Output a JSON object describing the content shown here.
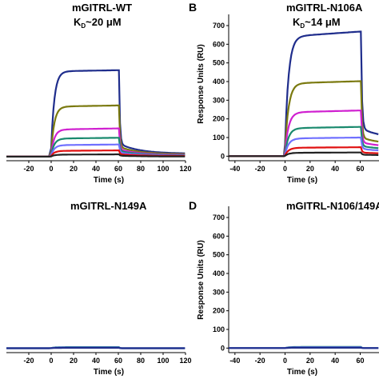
{
  "figure": {
    "panels": [
      {
        "letter": "",
        "title": "mGITRL-WT",
        "kd_label": "K",
        "kd_sub": "D",
        "kd_value": "~20 μM"
      },
      {
        "letter": "B",
        "title": "mGITRL-N106A",
        "kd_label": "K",
        "kd_sub": "D",
        "kd_value": "~14 μM"
      },
      {
        "letter": "",
        "title": "mGITRL-N149A",
        "kd_label": "",
        "kd_sub": "",
        "kd_value": ""
      },
      {
        "letter": "D",
        "title": "mGITRL-N106/149A",
        "kd_label": "",
        "kd_sub": "",
        "kd_value": ""
      }
    ]
  },
  "chart_data": [
    {
      "type": "line",
      "title": "mGITRL-WT",
      "xlabel": "Time (s)",
      "ylabel": "",
      "xlim": [
        -40,
        120
      ],
      "ylim": [
        -20,
        760
      ],
      "xticks": [
        -20,
        0,
        20,
        40,
        60,
        80,
        100,
        120
      ],
      "yticks": [],
      "series": [
        {
          "color": "#1f2d8c",
          "values": [
            0,
            0,
            520,
            527,
            80,
            40,
            18
          ]
        },
        {
          "color": "#7b7a10",
          "values": [
            0,
            0,
            305,
            312,
            60,
            30,
            14
          ]
        },
        {
          "color": "#d020d0",
          "values": [
            0,
            0,
            165,
            172,
            45,
            22,
            10
          ]
        },
        {
          "color": "#1a8a6e",
          "values": [
            0,
            0,
            110,
            115,
            35,
            18,
            8
          ]
        },
        {
          "color": "#7070ff",
          "values": [
            0,
            0,
            70,
            74,
            25,
            12,
            6
          ]
        },
        {
          "color": "#e01010",
          "values": [
            0,
            0,
            35,
            38,
            15,
            8,
            4
          ]
        },
        {
          "color": "#222222",
          "values": [
            0,
            0,
            12,
            14,
            6,
            3,
            1
          ]
        }
      ]
    },
    {
      "type": "line",
      "title": "mGITRL-N106A",
      "xlabel": "Time (s)",
      "ylabel": "Response Units (RU)",
      "xlim": [
        -45,
        75
      ],
      "ylim": [
        -20,
        760
      ],
      "xticks": [
        -40,
        -20,
        0,
        20,
        40,
        60
      ],
      "yticks": [
        0,
        100,
        200,
        300,
        400,
        500,
        600,
        700
      ],
      "series": [
        {
          "color": "#1f2d8c",
          "values": [
            0,
            0,
            640,
            668,
            150
          ]
        },
        {
          "color": "#7b7a10",
          "values": [
            0,
            0,
            390,
            402,
            100
          ]
        },
        {
          "color": "#d020d0",
          "values": [
            0,
            0,
            235,
            245,
            75
          ]
        },
        {
          "color": "#1a8a6e",
          "values": [
            0,
            0,
            150,
            157,
            55
          ]
        },
        {
          "color": "#7070ff",
          "values": [
            0,
            0,
            95,
            100,
            40
          ]
        },
        {
          "color": "#e01010",
          "values": [
            0,
            0,
            45,
            48,
            20
          ]
        },
        {
          "color": "#222222",
          "values": [
            0,
            0,
            18,
            20,
            8
          ]
        }
      ]
    },
    {
      "type": "line",
      "title": "mGITRL-N149A",
      "xlabel": "Time (s)",
      "ylabel": "",
      "xlim": [
        -40,
        120
      ],
      "ylim": [
        -20,
        760
      ],
      "xticks": [
        -20,
        0,
        20,
        40,
        60,
        80,
        100,
        120
      ],
      "yticks": [],
      "series": [
        {
          "color": "#1a8a6e",
          "values": [
            0,
            0,
            6,
            6,
            0,
            0,
            0
          ]
        },
        {
          "color": "#7070ff",
          "values": [
            0,
            0,
            4,
            4,
            0,
            0,
            0
          ]
        },
        {
          "color": "#1f2d8c",
          "values": [
            0,
            0,
            2,
            2,
            0,
            0,
            0
          ]
        }
      ]
    },
    {
      "type": "line",
      "title": "mGITRL-N106/149A",
      "xlabel": "Time (s)",
      "ylabel": "Response Units (RU)",
      "xlim": [
        -45,
        75
      ],
      "ylim": [
        -20,
        760
      ],
      "xticks": [
        -40,
        -20,
        0,
        20,
        40,
        60
      ],
      "yticks": [
        0,
        100,
        200,
        300,
        400,
        500,
        600,
        700
      ],
      "series": [
        {
          "color": "#1a8a6e",
          "values": [
            0,
            0,
            6,
            6,
            0
          ]
        },
        {
          "color": "#7070ff",
          "values": [
            0,
            0,
            4,
            4,
            0
          ]
        },
        {
          "color": "#1f2d8c",
          "values": [
            0,
            0,
            2,
            2,
            0
          ]
        }
      ]
    }
  ]
}
